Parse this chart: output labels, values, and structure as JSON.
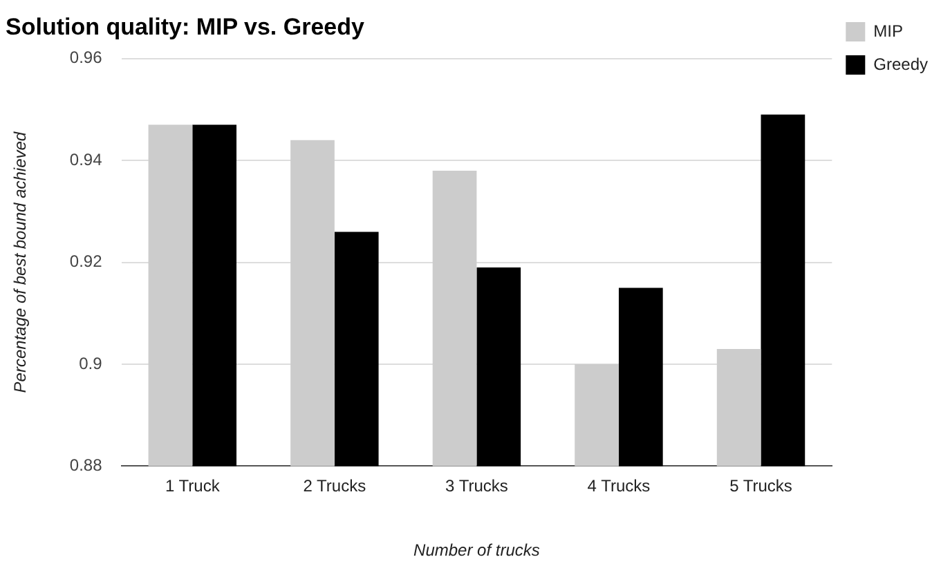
{
  "chart_data": {
    "type": "bar",
    "title": "Solution quality: MIP vs. Greedy",
    "xlabel": "Number of trucks",
    "ylabel": "Percentage of best bound achieved",
    "categories": [
      "1 Truck",
      "2 Trucks",
      "3 Trucks",
      "4 Trucks",
      "5 Trucks"
    ],
    "series": [
      {
        "name": "MIP",
        "color": "#cccccc",
        "values": [
          0.947,
          0.944,
          0.938,
          0.9,
          0.903
        ]
      },
      {
        "name": "Greedy",
        "color": "#000000",
        "values": [
          0.947,
          0.926,
          0.919,
          0.915,
          0.949
        ]
      }
    ],
    "ylim": [
      0.88,
      0.96
    ],
    "yticks": [
      0.88,
      0.9,
      0.92,
      0.94,
      0.96
    ],
    "grid": "y",
    "legend": "top right"
  }
}
